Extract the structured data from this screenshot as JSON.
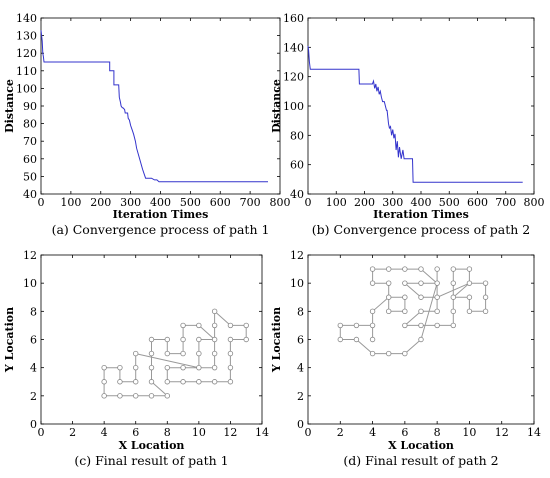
{
  "chart_data": [
    {
      "type": "line",
      "caption": "(a) Convergence process of path 1",
      "xlabel": "Iteration Times",
      "ylabel": "Distance",
      "xlim": [
        0,
        800
      ],
      "ylim": [
        40,
        140
      ],
      "xticks": [
        0,
        100,
        200,
        300,
        400,
        500,
        600,
        700,
        800
      ],
      "yticks": [
        40,
        50,
        60,
        70,
        80,
        90,
        100,
        110,
        120,
        130,
        140
      ],
      "color": "#3333cc",
      "x": [
        0,
        2,
        4,
        6,
        8,
        10,
        230,
        230,
        244,
        244,
        260,
        262,
        266,
        268,
        272,
        274,
        280,
        282,
        290,
        292,
        296,
        300,
        306,
        310,
        316,
        320,
        330,
        340,
        350,
        360,
        370,
        380,
        388,
        395,
        760
      ],
      "y": [
        133,
        130,
        127,
        120,
        118,
        115,
        115,
        110,
        110,
        102,
        102,
        95,
        92,
        90,
        89,
        89,
        88,
        86,
        86,
        83,
        82,
        79,
        76,
        74,
        70,
        66,
        60,
        54,
        49,
        49,
        49,
        48,
        48,
        47,
        47
      ]
    },
    {
      "type": "line",
      "caption": "(b) Convergence process of path 2",
      "xlabel": "Iteration Times",
      "ylabel": "Distance",
      "xlim": [
        0,
        800
      ],
      "ylim": [
        40,
        160
      ],
      "xticks": [
        0,
        100,
        200,
        300,
        400,
        500,
        600,
        700,
        800
      ],
      "yticks": [
        40,
        60,
        80,
        100,
        120,
        140,
        160
      ],
      "color": "#3333cc",
      "x": [
        0,
        2,
        5,
        8,
        180,
        182,
        228,
        232,
        236,
        240,
        244,
        248,
        252,
        256,
        260,
        264,
        270,
        278,
        280,
        285,
        288,
        292,
        296,
        300,
        304,
        308,
        312,
        316,
        320,
        324,
        330,
        336,
        340,
        370,
        372,
        760
      ],
      "y": [
        141,
        138,
        130,
        125,
        125,
        115,
        115,
        117,
        112,
        115,
        110,
        113,
        108,
        110,
        106,
        103,
        103,
        97,
        97,
        88,
        85,
        86,
        80,
        84,
        78,
        81,
        70,
        76,
        65,
        72,
        64,
        70,
        64,
        64,
        48,
        48
      ]
    },
    {
      "type": "path",
      "caption": "(c) Final result of path 1",
      "xlabel": "X Location",
      "ylabel": "Y Location",
      "xlim": [
        0,
        14
      ],
      "ylim": [
        0,
        12
      ],
      "xticks": [
        0,
        2,
        4,
        6,
        8,
        10,
        12,
        14
      ],
      "yticks": [
        0,
        2,
        4,
        6,
        8,
        10,
        12
      ],
      "color": "#999999",
      "points": [
        [
          4,
          2
        ],
        [
          5,
          2
        ],
        [
          6,
          2
        ],
        [
          7,
          2
        ],
        [
          8,
          2
        ],
        [
          7,
          3
        ],
        [
          7,
          4
        ],
        [
          7,
          5
        ],
        [
          7,
          6
        ],
        [
          8,
          6
        ],
        [
          8,
          5
        ],
        [
          9,
          5
        ],
        [
          9,
          6
        ],
        [
          9,
          7
        ],
        [
          10,
          7
        ],
        [
          11,
          6
        ],
        [
          10,
          6
        ],
        [
          10,
          5
        ],
        [
          10,
          4
        ],
        [
          11,
          4
        ],
        [
          11,
          5
        ],
        [
          11,
          6
        ],
        [
          11,
          7
        ],
        [
          11,
          8
        ],
        [
          12,
          7
        ],
        [
          13,
          7
        ],
        [
          13,
          6
        ],
        [
          12,
          6
        ],
        [
          12,
          5
        ],
        [
          12,
          4
        ],
        [
          12,
          3
        ],
        [
          11,
          3
        ],
        [
          10,
          3
        ],
        [
          9,
          3
        ],
        [
          8,
          3
        ],
        [
          8,
          4
        ],
        [
          9,
          4
        ],
        [
          10,
          4
        ],
        [
          6,
          5
        ],
        [
          6,
          4
        ],
        [
          6,
          3
        ],
        [
          5,
          3
        ],
        [
          5,
          4
        ],
        [
          4,
          4
        ],
        [
          4,
          3
        ],
        [
          4,
          2
        ]
      ]
    },
    {
      "type": "path",
      "caption": "(d) Final result of path 2",
      "xlabel": "X Location",
      "ylabel": "Y Location",
      "xlim": [
        0,
        14
      ],
      "ylim": [
        0,
        12
      ],
      "xticks": [
        0,
        2,
        4,
        6,
        8,
        10,
        12,
        14
      ],
      "yticks": [
        0,
        2,
        4,
        6,
        8,
        10,
        12
      ],
      "color": "#999999",
      "points": [
        [
          2,
          7
        ],
        [
          3,
          7
        ],
        [
          4,
          7
        ],
        [
          4,
          6
        ],
        [
          4,
          8
        ],
        [
          5,
          9
        ],
        [
          6,
          9
        ],
        [
          6,
          8
        ],
        [
          5,
          8
        ],
        [
          5,
          10
        ],
        [
          4,
          10
        ],
        [
          4,
          11
        ],
        [
          5,
          11
        ],
        [
          6,
          11
        ],
        [
          7,
          11
        ],
        [
          8,
          10
        ],
        [
          7,
          10
        ],
        [
          6,
          10
        ],
        [
          7,
          9
        ],
        [
          8,
          9
        ],
        [
          8,
          8
        ],
        [
          7,
          8
        ],
        [
          6,
          7
        ],
        [
          7,
          7
        ],
        [
          8,
          7
        ],
        [
          9,
          7
        ],
        [
          9,
          8
        ],
        [
          9,
          9
        ],
        [
          9,
          10
        ],
        [
          9,
          11
        ],
        [
          10,
          11
        ],
        [
          10,
          10
        ],
        [
          9,
          9
        ],
        [
          10,
          9
        ],
        [
          10,
          8
        ],
        [
          11,
          8
        ],
        [
          11,
          9
        ],
        [
          11,
          10
        ],
        [
          10,
          10
        ],
        [
          8,
          9
        ],
        [
          8,
          11
        ],
        [
          8,
          10
        ],
        [
          7,
          6
        ],
        [
          6,
          5
        ],
        [
          5,
          5
        ],
        [
          4,
          5
        ],
        [
          3,
          6
        ],
        [
          2,
          6
        ],
        [
          2,
          7
        ]
      ]
    }
  ]
}
